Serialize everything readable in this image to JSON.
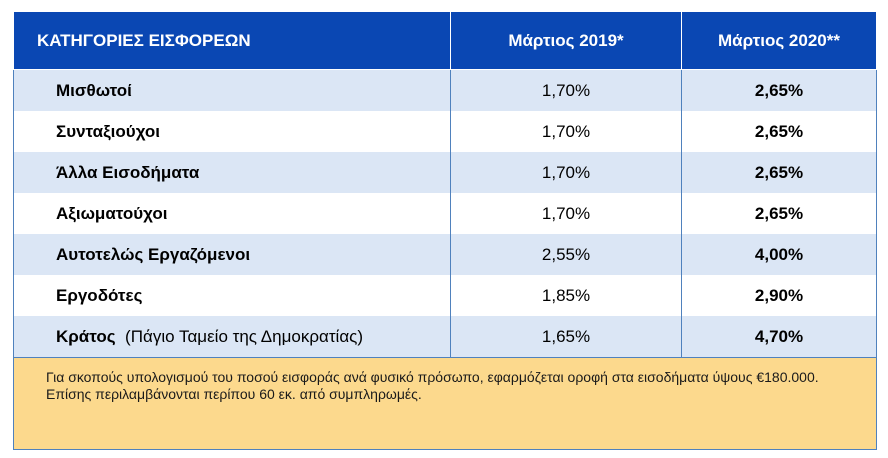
{
  "table": {
    "headers": {
      "category": "ΚΑΤΗΓΟΡΙΕΣ ΕΙΣΦΟΡΕΩΝ",
      "col_2019": "Μάρτιος 2019*",
      "col_2020": "Μάρτιος 2020**"
    },
    "rows": [
      {
        "category": "Μισθωτοί",
        "note": "",
        "v2019": "1,70%",
        "v2020": "2,65%"
      },
      {
        "category": "Συνταξιούχοι",
        "note": "",
        "v2019": "1,70%",
        "v2020": "2,65%"
      },
      {
        "category": "Άλλα Εισοδήματα",
        "note": "",
        "v2019": "1,70%",
        "v2020": "2,65%"
      },
      {
        "category": "Αξιωματούχοι",
        "note": "",
        "v2019": "1,70%",
        "v2020": "2,65%"
      },
      {
        "category": "Αυτοτελώς Εργαζόμενοι",
        "note": "",
        "v2019": "2,55%",
        "v2020": "4,00%"
      },
      {
        "category": "Εργοδότες",
        "note": "",
        "v2019": "1,85%",
        "v2020": "2,90%"
      },
      {
        "category": "Κράτος",
        "note": "(Πάγιο Ταμείο της Δημοκρατίας)",
        "v2019": "1,65%",
        "v2020": "4,70%"
      }
    ],
    "footnote": {
      "line1": "Για σκοπούς υπολογισμού του ποσού εισφοράς ανά φυσικό πρόσωπο, εφαρμόζεται οροφή στα εισοδήματα ύψους €180.000.",
      "line2": "Επίσης περιλαμβάνονται περίπου 60 εκ. από συμπληρωμές."
    }
  },
  "colors": {
    "header_bg": "#0a47b3",
    "row_alt_bg": "#dbe6f5",
    "footnote_bg": "#fcd98d"
  }
}
